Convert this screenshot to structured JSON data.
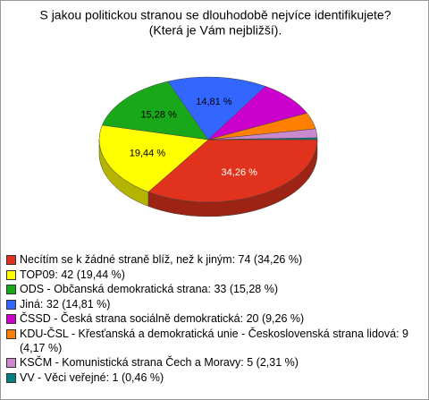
{
  "chart_data": {
    "type": "pie",
    "title": "S jakou politickou stranou se dlouhodobě nejvíce identifikujete?",
    "subtitle": "(Která je Vám nejbližší).",
    "categories": [
      "Necítím se k žádné straně blíž, než k jiným: 74 (34,26 %)",
      "TOP09: 42 (19,44 %)",
      "ODS - Občanská demokratická strana: 33 (15,28 %)",
      "Jiná: 32 (14,81 %)",
      "ČSSD - Česká strana sociálně demokratická: 20 (9,26 %)",
      "KDU-ČSL - Křesťanská a demokratická unie - Československá strana lidová: 9 (4,17 %)",
      "KSČM - Komunistická strana Čech a Moravy: 5 (2,31 %)",
      "VV - Věci veřejné: 1 (0,46 %)"
    ],
    "values": [
      34.26,
      19.44,
      15.28,
      14.81,
      9.26,
      4.17,
      2.31,
      0.46
    ],
    "value_labels": [
      "34,26 %",
      "19,44 %",
      "15,28 %",
      "14,81 %",
      null,
      null,
      null,
      null
    ],
    "colors": [
      "#e0321c",
      "#ffff00",
      "#19a819",
      "#3366ff",
      "#cc00cc",
      "#ff8000",
      "#cc88cc",
      "#008080"
    ]
  }
}
